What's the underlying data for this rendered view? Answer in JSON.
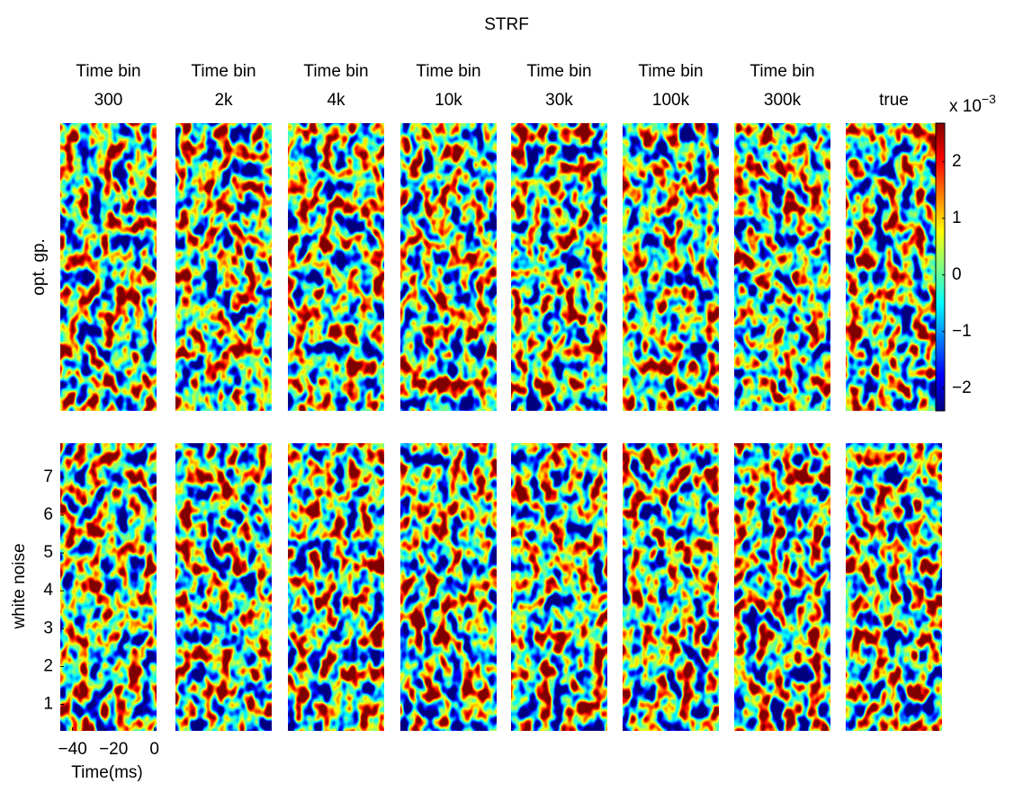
{
  "chart_data": {
    "type": "heatmap",
    "title": "STRF",
    "columns": [
      [
        "Time bin",
        "300"
      ],
      [
        "Time bin",
        "2k"
      ],
      [
        "Time bin",
        "4k"
      ],
      [
        "Time bin",
        "10k"
      ],
      [
        "Time bin",
        "30k"
      ],
      [
        "Time bin",
        "100k"
      ],
      [
        "Time bin",
        "300k"
      ],
      [
        "true"
      ]
    ],
    "rows": [
      "opt. gp.",
      "white noise"
    ],
    "xlabel": "Time(ms)",
    "xlim": [
      -46,
      1
    ],
    "xticks": [
      {
        "value": -40,
        "label": "−40"
      },
      {
        "value": -20,
        "label": "−20"
      },
      0
    ],
    "ylim": [
      0.3,
      7.9
    ],
    "yticks": [
      1,
      2,
      3,
      4,
      5,
      6,
      7
    ],
    "colorbar": {
      "label": "x 10",
      "exponent": "−3",
      "clim": [
        -2.4,
        2.68
      ],
      "ticks": [
        {
          "value": -2,
          "label": "−2"
        },
        {
          "value": -1,
          "label": "−1"
        },
        0,
        1,
        2
      ]
    }
  }
}
